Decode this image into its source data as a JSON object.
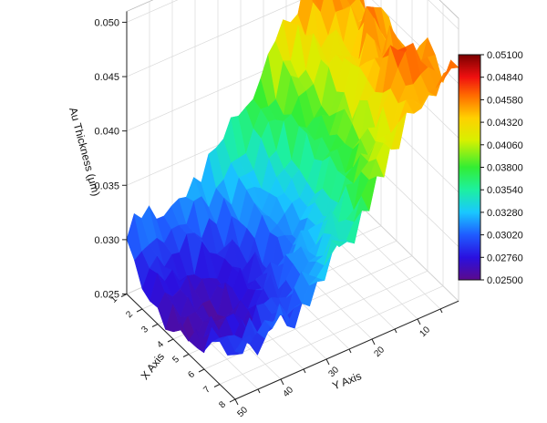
{
  "chart_data": {
    "type": "surface3d",
    "title": "",
    "zlabel": "Au Thickness (μm)",
    "xlabel": "X Axis",
    "ylabel": "Y Axis",
    "zlim": [
      0.025,
      0.051
    ],
    "z_ticks": [
      "0.025",
      "0.030",
      "0.035",
      "0.040",
      "0.045",
      "0.050"
    ],
    "x_ticks": [
      "1",
      "2",
      "3",
      "4",
      "5",
      "6",
      "7",
      "8"
    ],
    "y_ticks": [
      "10",
      "20",
      "30",
      "40",
      "50"
    ],
    "colorscale": {
      "min": 0.025,
      "max": 0.051,
      "labels": [
        "0.05100",
        "0.04840",
        "0.04580",
        "0.04320",
        "0.04060",
        "0.03800",
        "0.03540",
        "0.03280",
        "0.03020",
        "0.02760",
        "0.02500"
      ],
      "stops": [
        [
          0.0,
          "#5b0a8c"
        ],
        [
          0.1,
          "#2a10e0"
        ],
        [
          0.2,
          "#1f5cff"
        ],
        [
          0.3,
          "#19c8ff"
        ],
        [
          0.4,
          "#1df0a0"
        ],
        [
          0.5,
          "#33ee33"
        ],
        [
          0.62,
          "#d8f000"
        ],
        [
          0.72,
          "#ffd000"
        ],
        [
          0.82,
          "#ff6a00"
        ],
        [
          0.9,
          "#f01010"
        ],
        [
          1.0,
          "#7a0000"
        ]
      ]
    },
    "grid": true,
    "legend_position": "right",
    "x_range": [
      1,
      8
    ],
    "y_range": [
      1,
      50
    ],
    "y_profile": [
      [
        1,
        0.0432
      ],
      [
        6,
        0.0436
      ],
      [
        12,
        0.0412
      ],
      [
        18,
        0.0372
      ],
      [
        24,
        0.0333
      ],
      [
        30,
        0.0302
      ],
      [
        36,
        0.0282
      ],
      [
        42,
        0.0272
      ],
      [
        48,
        0.0268
      ],
      [
        50,
        0.0266
      ]
    ],
    "x_profile_offset": [
      [
        1,
        0.0048
      ],
      [
        2,
        0.0022
      ],
      [
        3,
        0.0008
      ],
      [
        4,
        0.0
      ],
      [
        5,
        0.0004
      ],
      [
        6,
        0.0012
      ],
      [
        7,
        0.0022
      ],
      [
        8,
        0.0032
      ]
    ],
    "peak_value": 0.0508,
    "min_value": 0.0252
  }
}
